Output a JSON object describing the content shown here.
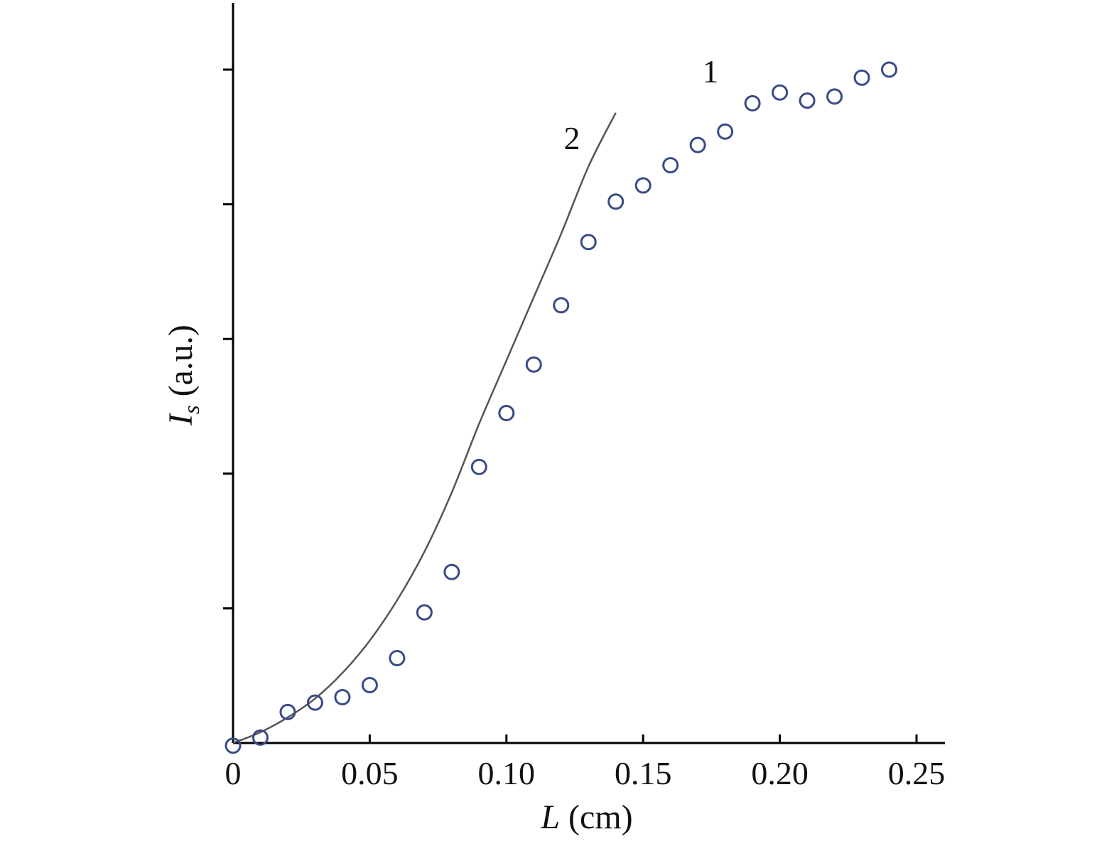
{
  "chart_data": {
    "type": "scatter",
    "xlabel_var": "L",
    "xlabel_unit": " (cm)",
    "ylabel_var": "I",
    "ylabel_sub": "s",
    "ylabel_unit": " (a.u.)",
    "xlim": [
      0,
      0.26
    ],
    "ylim": [
      0,
      5.5
    ],
    "x_ticks": [
      0,
      0.05,
      0.1,
      0.15,
      0.2,
      0.25
    ],
    "x_tick_labels": [
      "0",
      "0.05",
      "0.10",
      "0.15",
      "0.20",
      "0.25"
    ],
    "y_ticks": [
      1,
      2,
      3,
      4,
      5
    ],
    "y_tick_labels": [
      "",
      "",
      "",
      "",
      ""
    ],
    "grid": false,
    "series": [
      {
        "name": "1",
        "style": "markers",
        "marker": "open-circle",
        "color": "#3a4a86",
        "x": [
          0,
          0.01,
          0.02,
          0.03,
          0.04,
          0.05,
          0.06,
          0.07,
          0.08,
          0.09,
          0.1,
          0.11,
          0.12,
          0.13,
          0.14,
          0.15,
          0.16,
          0.17,
          0.18,
          0.19,
          0.2,
          0.21,
          0.22,
          0.23,
          0.24
        ],
        "y": [
          -0.02,
          0.04,
          0.23,
          0.3,
          0.34,
          0.43,
          0.63,
          0.97,
          1.27,
          2.05,
          2.45,
          2.81,
          3.25,
          3.72,
          4.02,
          4.14,
          4.29,
          4.44,
          4.54,
          4.75,
          4.83,
          4.77,
          4.8,
          4.94,
          5.0
        ]
      },
      {
        "name": "2",
        "style": "line",
        "color": "#555555",
        "x": [
          0,
          0.01,
          0.02,
          0.03,
          0.04,
          0.05,
          0.06,
          0.07,
          0.08,
          0.09,
          0.1,
          0.11,
          0.12,
          0.13,
          0.14
        ],
        "y": [
          0.0,
          0.08,
          0.19,
          0.33,
          0.52,
          0.76,
          1.06,
          1.42,
          1.86,
          2.37,
          2.84,
          3.31,
          3.78,
          4.28,
          4.68
        ]
      }
    ]
  }
}
